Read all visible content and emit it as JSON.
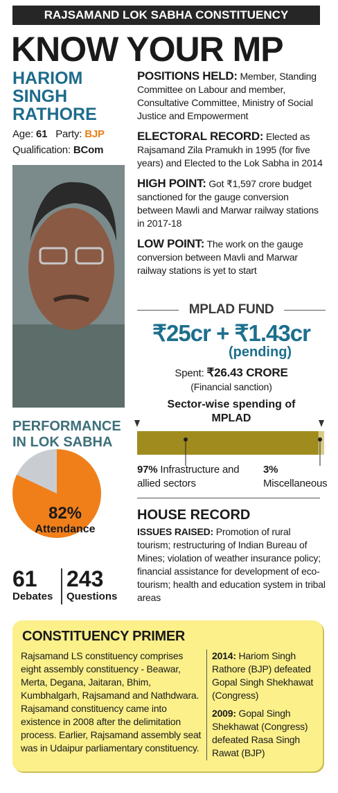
{
  "header": {
    "banner": "RAJSAMAND LOK SABHA CONSTITUENCY",
    "title": "KNOW YOUR MP"
  },
  "mp": {
    "name": "HARIOM SINGH RATHORE",
    "age_label": "Age:",
    "age": "61",
    "party_label": "Party:",
    "party": "BJP",
    "qualification_label": "Qualification:",
    "qualification": "BCom"
  },
  "positions": [
    {
      "label": "POSITIONS HELD:",
      "text": "Member, Standing Committee on Labour and member, Consultative Committee, Ministry of Social Justice and Empowerment"
    },
    {
      "label": "ELECTORAL RECORD:",
      "text": "Elected as Rajsamand Zila Pramukh in 1995 (for five years) and Elected to the Lok Sabha in 2014"
    },
    {
      "label": "HIGH POINT:",
      "text": "Got ₹1,597 crore budget sanctioned for the gauge conversion between Mawli and Marwar railway stations in 2017-18"
    },
    {
      "label": "LOW POINT:",
      "text": "The work on the gauge conversion between Mavli and Marwar railway stations is yet to start"
    }
  ],
  "mplad": {
    "title": "MPLAD FUND",
    "amount": "₹25cr + ₹1.43cr",
    "pending": "(pending)",
    "spent_label": "Spent:",
    "spent": "₹26.43 CRORE",
    "spent_note": "(Financial sanction)",
    "sector_title": "Sector-wise spending of MPLAD",
    "sectors": [
      {
        "name": "Infrastructure and allied sectors",
        "value": 97,
        "value_label": "97%",
        "color": "#a08c1e"
      },
      {
        "name": "Miscellaneous",
        "value": 3,
        "value_label": "3%",
        "color": "#d8cb85"
      }
    ]
  },
  "performance": {
    "title": "PERFORMANCE IN LOK SABHA",
    "attendance": 82,
    "attendance_label": "82%",
    "attendance_text": "Attendance",
    "attendance_color": "#f07f1a",
    "rest_color": "#c9cdd1",
    "debates": 61,
    "debates_label": "Debates",
    "questions": 243,
    "questions_label": "Questions"
  },
  "house_record": {
    "title": "HOUSE RECORD",
    "label": "ISSUES RAISED:",
    "text": "Promotion of rural tourism; restructuring of Indian Bureau of Mines; violation of weather insurance policy; financial assistance for development of eco-tourism; health and education system in tribal areas"
  },
  "primer": {
    "title": "CONSTITUENCY PRIMER",
    "text": "Rajsamand LS constituency comprises eight assembly constituency - Beawar, Merta, Degana, Jaitaran, Bhim, Kumbhalgarh, Rajsamand and Nathdwara. Rajsamand constituency came into existence in 2008 after the delimitation process. Earlier, Rajsamand assembly seat was in Udaipur parliamentary constituency.",
    "results": [
      {
        "year": "2014:",
        "text": "Hariom Singh Rathore (BJP) defeated Gopal Singh Shekhawat (Congress)"
      },
      {
        "year": "2009:",
        "text": "Gopal Singh Shekhawat (Congress) defeated Rasa Singh Rawat (BJP)"
      }
    ]
  }
}
